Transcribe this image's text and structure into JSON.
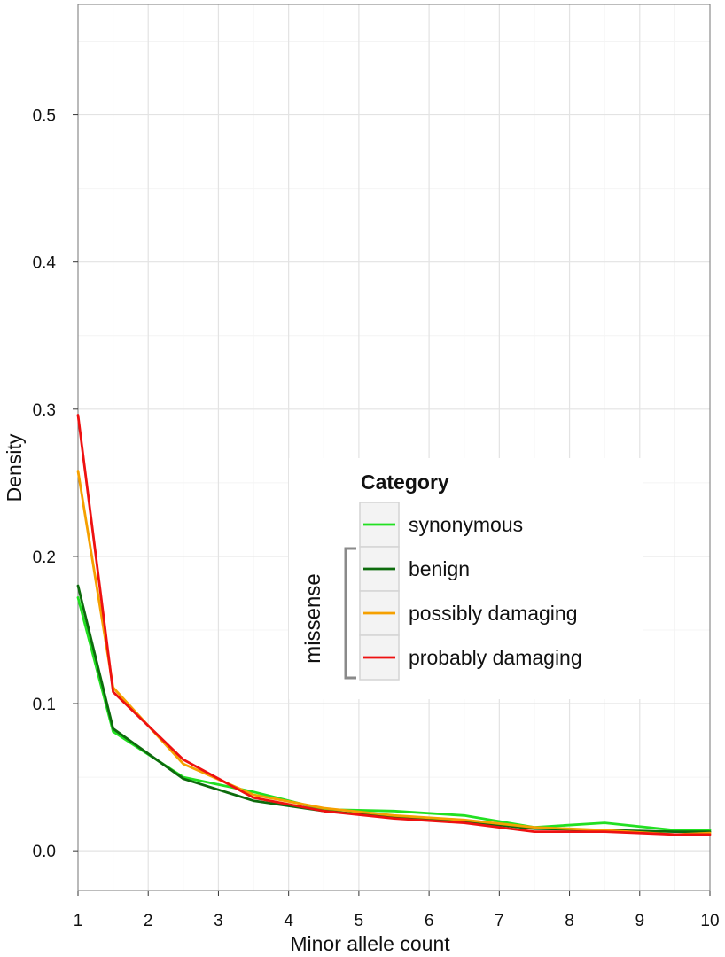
{
  "chart_data": {
    "type": "line",
    "xlabel": "Minor allele count",
    "ylabel": "Density",
    "xlim": [
      1,
      10
    ],
    "ylim": [
      -0.027,
      0.575
    ],
    "x_ticks": [
      1,
      2,
      3,
      4,
      5,
      6,
      7,
      8,
      9,
      10
    ],
    "y_ticks": [
      0.0,
      0.1,
      0.2,
      0.3,
      0.4,
      0.5
    ],
    "y_tick_labels": [
      "0.0",
      "0.1",
      "0.2",
      "0.3",
      "0.4",
      "0.5"
    ],
    "grid": true,
    "legend": {
      "title": "Category",
      "placement": "center-right",
      "bracket_label": "missense",
      "bracket_groups": [
        "benign",
        "possibly damaging",
        "probably damaging"
      ]
    },
    "series": [
      {
        "name": "synonymous",
        "color": "#22e022",
        "x": [
          1,
          1.5,
          2.5,
          3.5,
          4.5,
          5.5,
          6.5,
          7.5,
          8.5,
          9.5,
          10
        ],
        "y": [
          0.172,
          0.081,
          0.05,
          0.04,
          0.028,
          0.027,
          0.024,
          0.016,
          0.019,
          0.014,
          0.014
        ]
      },
      {
        "name": "benign",
        "color": "#0d6b0d",
        "x": [
          1,
          1.5,
          2.5,
          3.5,
          4.5,
          5.5,
          6.5,
          7.5,
          8.5,
          9.5,
          10
        ],
        "y": [
          0.18,
          0.083,
          0.049,
          0.034,
          0.027,
          0.023,
          0.02,
          0.015,
          0.014,
          0.013,
          0.013
        ]
      },
      {
        "name": "possibly damaging",
        "color": "#f5a000",
        "x": [
          1,
          1.5,
          2.5,
          3.5,
          4.5,
          5.5,
          6.5,
          7.5,
          8.5,
          9.5,
          10
        ],
        "y": [
          0.258,
          0.111,
          0.059,
          0.038,
          0.029,
          0.024,
          0.021,
          0.016,
          0.014,
          0.011,
          0.012
        ]
      },
      {
        "name": "probably damaging",
        "color": "#ee1111",
        "x": [
          1,
          1.5,
          2.5,
          3.5,
          4.5,
          5.5,
          6.5,
          7.5,
          8.5,
          9.5,
          10
        ],
        "y": [
          0.296,
          0.108,
          0.062,
          0.036,
          0.027,
          0.022,
          0.019,
          0.013,
          0.013,
          0.011,
          0.011
        ]
      }
    ]
  }
}
